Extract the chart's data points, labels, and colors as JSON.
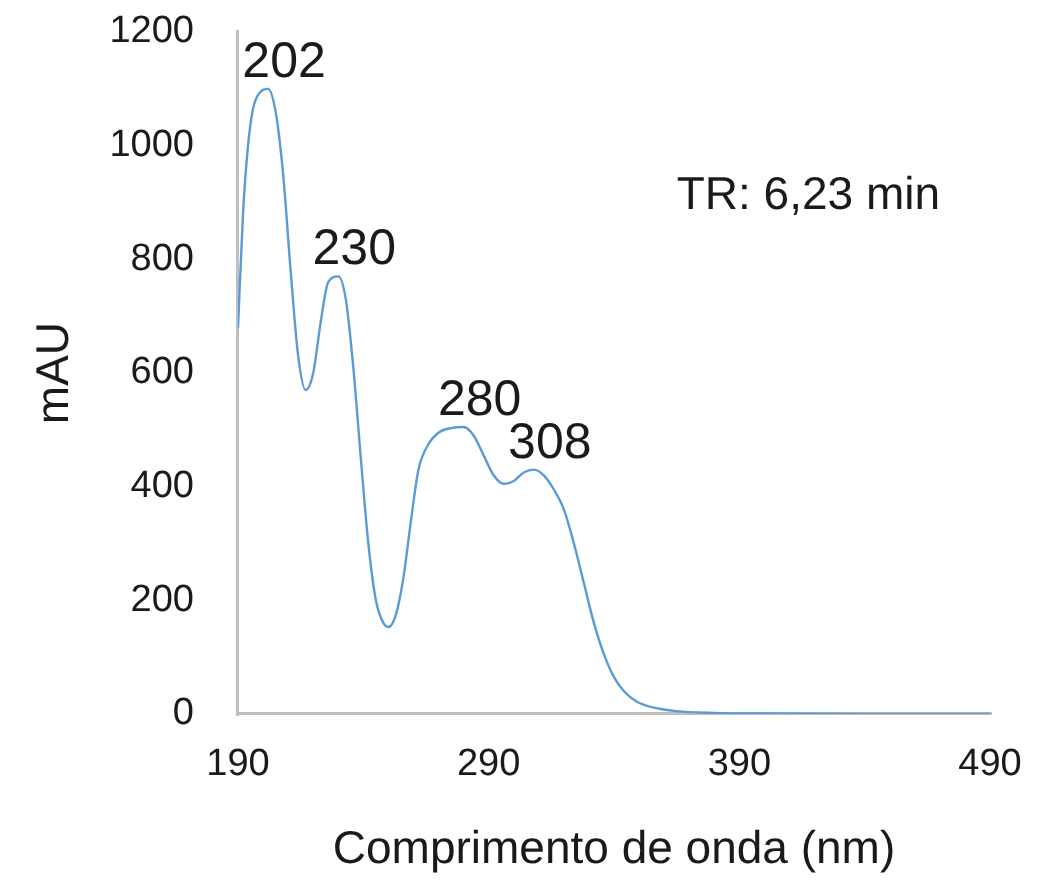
{
  "chart_data": {
    "type": "line",
    "xlabel": "Comprimento de onda (nm)",
    "ylabel": "mAU",
    "x": [
      190,
      192,
      194,
      196,
      199,
      202,
      205,
      208,
      211,
      214,
      217,
      220,
      223,
      226,
      230,
      233,
      236,
      239,
      242,
      245,
      248,
      250,
      253,
      256,
      259,
      262,
      266,
      270,
      275,
      280,
      284,
      288,
      292,
      296,
      300,
      304,
      308,
      312,
      316,
      320,
      324,
      328,
      332,
      336,
      340,
      344,
      349,
      355,
      365,
      380,
      400,
      440,
      490
    ],
    "series": [
      {
        "color": "#5b9bd5",
        "values": [
          680,
          880,
          1000,
          1065,
          1095,
          1100,
          1060,
          950,
          780,
          630,
          570,
          600,
          690,
          760,
          770,
          730,
          610,
          450,
          300,
          200,
          160,
          153,
          175,
          240,
          340,
          430,
          475,
          495,
          503,
          505,
          490,
          455,
          420,
          405,
          410,
          425,
          430,
          420,
          395,
          360,
          300,
          230,
          160,
          105,
          65,
          40,
          22,
          12,
          5,
          2,
          1,
          0,
          0
        ]
      }
    ],
    "xlim": [
      190,
      490
    ],
    "xticks": [
      190,
      290,
      390,
      490
    ],
    "ylim": [
      0,
      1200
    ],
    "yticks": [
      0,
      200,
      400,
      600,
      800,
      1000,
      1200
    ],
    "grid": false,
    "legend": false,
    "marker": "none",
    "line_style": "solid",
    "annotations": [
      {
        "text": "202",
        "x": 202,
        "y": 1100
      },
      {
        "text": "230",
        "x": 230,
        "y": 770
      },
      {
        "text": "280",
        "x": 280,
        "y": 505
      },
      {
        "text": "308",
        "x": 308,
        "y": 430
      },
      "TR: 6,23 min"
    ]
  }
}
